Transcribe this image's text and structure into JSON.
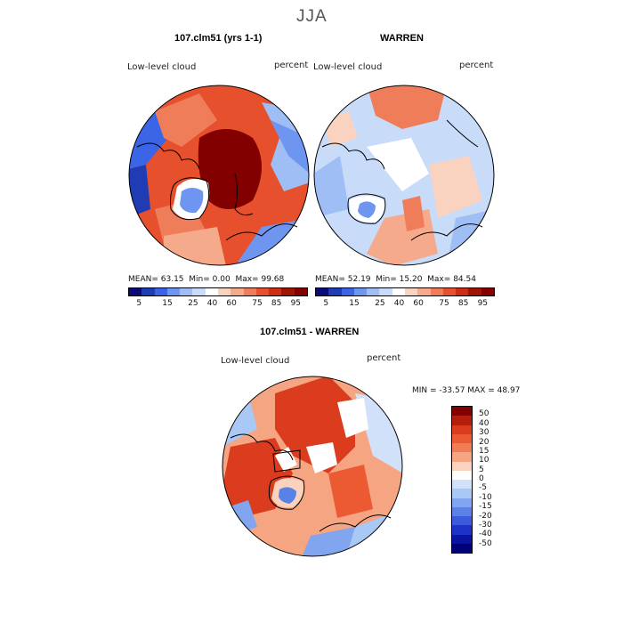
{
  "page": {
    "title": "JJA"
  },
  "panels": [
    {
      "title": "107.clm51 (yrs 1-1)",
      "variable": "Low-level cloud",
      "units": "percent",
      "mean_label": "MEAN=",
      "mean": "63.15",
      "min_label": "Min=",
      "min": "0.00",
      "max_label": "Max=",
      "max": "99.68"
    },
    {
      "title": "WARREN",
      "variable": "Low-level cloud",
      "units": "percent",
      "mean_label": "MEAN=",
      "mean": "52.19",
      "min_label": "Min=",
      "min": "15.20",
      "max_label": "Max=",
      "max": "84.54"
    }
  ],
  "colorbar_top": {
    "colors": [
      "#0a0a78",
      "#1f3cb4",
      "#3c64e6",
      "#6e96f0",
      "#9ebef5",
      "#c8dcfa",
      "#ffffff",
      "#fad2c0",
      "#f5aa8c",
      "#f07d5a",
      "#e6502d",
      "#cd2d14",
      "#a01405",
      "#820000"
    ],
    "ticks": [
      "5",
      "15",
      "25",
      "40",
      "60",
      "75",
      "85",
      "95"
    ]
  },
  "diff_panel": {
    "title": "107.clm51 - WARREN",
    "variable": "Low-level cloud",
    "units": "percent",
    "stats_text": "MIN = -33.57 MAX =  48.97"
  },
  "colorbar_diff": {
    "colors": [
      "#820000",
      "#b41e0a",
      "#dc3c1e",
      "#eb5a32",
      "#f07d55",
      "#f5a582",
      "#fad2be",
      "#ffffff",
      "#d2e1fa",
      "#aac8f5",
      "#82a5f0",
      "#5a82e6",
      "#3c5adc",
      "#1e32c8",
      "#0a14a0",
      "#000078"
    ],
    "ticks": [
      "50",
      "40",
      "30",
      "20",
      "15",
      "10",
      "5",
      "0",
      "-5",
      "-10",
      "-15",
      "-20",
      "-30",
      "-40",
      "-50"
    ]
  },
  "legend_colors": {
    "high": "#820000",
    "red": "#dc3c1e",
    "orange": "#f07d55",
    "salmon": "#f5a582",
    "pink": "#fad2be",
    "white": "#ffffff",
    "paleblue": "#c8dcfa",
    "lightblue": "#9ebef5",
    "blue": "#5a82e6",
    "deepblue": "#1e32c8"
  }
}
